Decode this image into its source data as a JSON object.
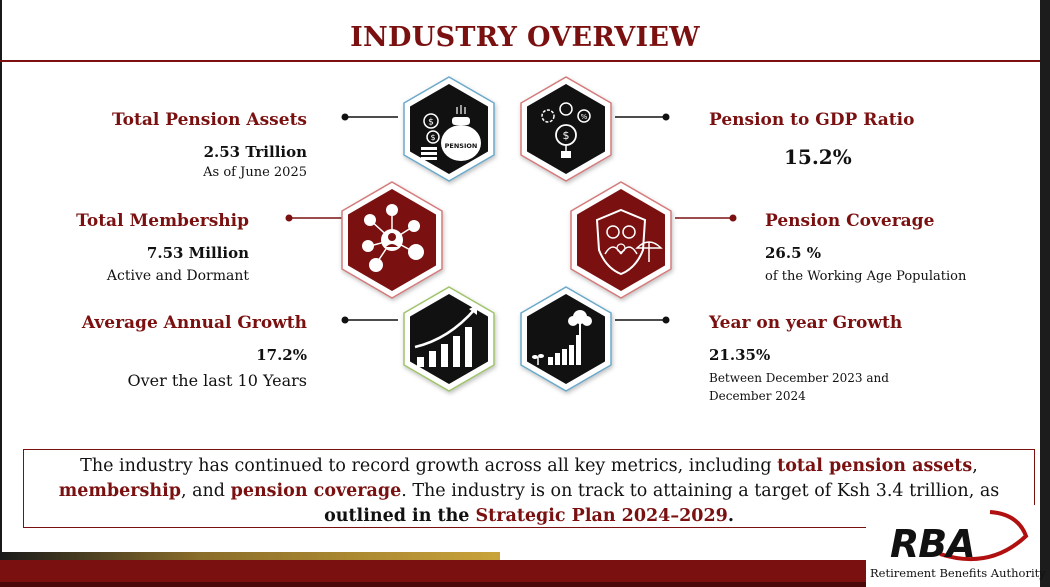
{
  "title": "INDUSTRY OVERVIEW",
  "metrics": {
    "total_assets": {
      "label": "Total Pension Assets",
      "value": "2.53 Trillion",
      "note": "As of June 2025"
    },
    "membership": {
      "label": "Total Membership",
      "value": "7.53 Million",
      "note": "Active and Dormant"
    },
    "avg_growth": {
      "label": "Average Annual Growth",
      "value": "17.2%",
      "note": "Over the last 10 Years"
    },
    "gdp_ratio": {
      "label": "Pension to GDP Ratio",
      "value": "15.2%"
    },
    "coverage": {
      "label": "Pension Coverage",
      "value": "26.5 %",
      "note": "of the Working Age Population"
    },
    "yoy_growth": {
      "label": "Year on year Growth",
      "value": "21.35%",
      "note_line1": "Between December 2023 and",
      "note_line2": "December 2024"
    }
  },
  "summary": {
    "t1": "The industry has continued to record growth across all key metrics, including ",
    "h1": "total pension assets",
    "t2": ",",
    "h2": "membership",
    "t3": ", and ",
    "h3": "pension coverage",
    "t4": ". The industry is on track to attaining a target of Ksh 3.4 trillion, as",
    "t5": "outlined in the ",
    "h4": "Strategic Plan 2024–2029",
    "t6": "."
  },
  "logo": {
    "mark": "RBA",
    "name": "Retirement Benefits Authority"
  },
  "icons": [
    "money-bag-icon",
    "gear-chart-icon",
    "network-people-icon",
    "shield-family-icon",
    "growth-bars-icon",
    "tree-growth-icon"
  ],
  "colors": {
    "accent": "#7a1010",
    "dark": "#111111",
    "gold": "#c9a33a"
  }
}
